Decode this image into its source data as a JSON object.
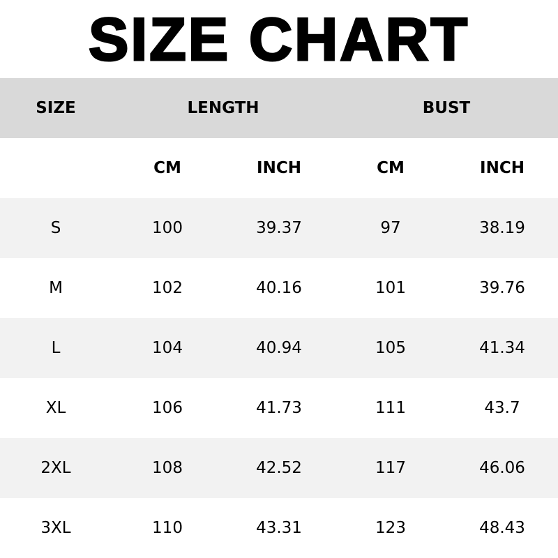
{
  "title": "SIZE CHART",
  "header": {
    "size": "SIZE",
    "length": "LENGTH",
    "bust": "BUST"
  },
  "units": [
    "CM",
    "INCH",
    "CM",
    "INCH"
  ],
  "rows": [
    [
      "S",
      "100",
      "39.37",
      "97",
      "38.19"
    ],
    [
      "M",
      "102",
      "40.16",
      "101",
      "39.76"
    ],
    [
      "L",
      "104",
      "40.94",
      "105",
      "41.34"
    ],
    [
      "XL",
      "106",
      "41.73",
      "111",
      "43.7"
    ],
    [
      "2XL",
      "108",
      "42.52",
      "117",
      "46.06"
    ],
    [
      "3XL",
      "110",
      "43.31",
      "123",
      "48.43"
    ]
  ]
}
